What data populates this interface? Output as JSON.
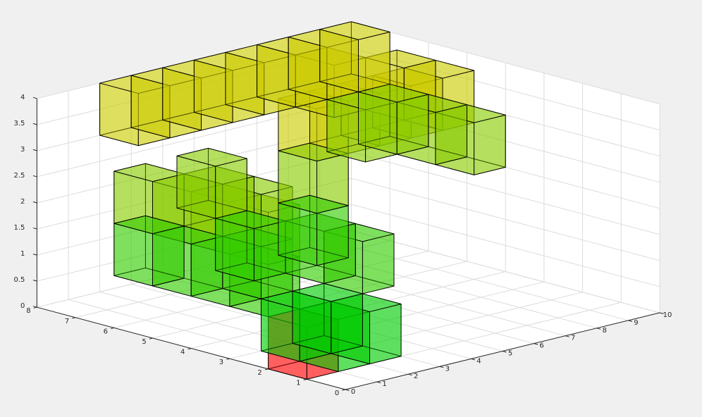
{
  "chart_data": {
    "type": "voxel-3d",
    "xlim": [
      0,
      10
    ],
    "ylim": [
      0,
      8
    ],
    "zlim": [
      0,
      4
    ],
    "x_ticks": [
      "0",
      "1",
      "2",
      "3",
      "4",
      "5",
      "6",
      "7",
      "8",
      "9",
      "10"
    ],
    "y_ticks": [
      "0",
      "1",
      "2",
      "3",
      "4",
      "5",
      "6",
      "7",
      "8"
    ],
    "z_ticks": [
      "0",
      "0.5",
      "1",
      "1.5",
      "2",
      "2.5",
      "3",
      "3.5",
      "4"
    ],
    "grid": true,
    "face_alpha": 0.7,
    "colors": {
      "start": "#ff0000",
      "level_0": "#00cc00",
      "level_1": "#33cc00",
      "level_2": "#88cc00",
      "level_3": "#cccc00"
    },
    "voxels": [
      {
        "x": 0,
        "y": 1,
        "z": 0,
        "kind": "start"
      },
      {
        "x": 1,
        "y": 1,
        "z": 0,
        "kind": "level_0"
      },
      {
        "x": 2,
        "y": 1,
        "z": 0,
        "kind": "level_0"
      },
      {
        "x": 1,
        "y": 2,
        "z": 0,
        "kind": "level_0"
      },
      {
        "x": 2,
        "y": 2,
        "z": 0,
        "kind": "level_0"
      },
      {
        "x": 0,
        "y": 2,
        "z": 1,
        "kind": "level_1"
      },
      {
        "x": 0,
        "y": 3,
        "z": 1,
        "kind": "level_1"
      },
      {
        "x": 0,
        "y": 4,
        "z": 1,
        "kind": "level_1"
      },
      {
        "x": 0,
        "y": 5,
        "z": 1,
        "kind": "level_1"
      },
      {
        "x": 1,
        "y": 3,
        "z": 1,
        "kind": "level_1"
      },
      {
        "x": 2,
        "y": 4,
        "z": 1,
        "kind": "level_1"
      },
      {
        "x": 3,
        "y": 3,
        "z": 1,
        "kind": "level_1"
      },
      {
        "x": 3,
        "y": 2,
        "z": 1,
        "kind": "level_1"
      },
      {
        "x": 4,
        "y": 4,
        "z": 1,
        "kind": "level_1"
      },
      {
        "x": 0,
        "y": 2,
        "z": 2,
        "kind": "level_2"
      },
      {
        "x": 0,
        "y": 3,
        "z": 2,
        "kind": "level_2"
      },
      {
        "x": 0,
        "y": 4,
        "z": 2,
        "kind": "level_2"
      },
      {
        "x": 0,
        "y": 5,
        "z": 2,
        "kind": "level_2"
      },
      {
        "x": 1,
        "y": 3,
        "z": 2,
        "kind": "level_2"
      },
      {
        "x": 1,
        "y": 4,
        "z": 2,
        "kind": "level_2"
      },
      {
        "x": 2,
        "y": 5,
        "z": 2,
        "kind": "level_2"
      },
      {
        "x": 4,
        "y": 4,
        "z": 2,
        "kind": "level_2"
      },
      {
        "x": 9,
        "y": 4,
        "z": 2,
        "kind": "level_2"
      },
      {
        "x": 9,
        "y": 5,
        "z": 2,
        "kind": "level_2"
      },
      {
        "x": 9,
        "y": 6,
        "z": 2,
        "kind": "level_2"
      },
      {
        "x": 8,
        "y": 6,
        "z": 2,
        "kind": "level_2"
      },
      {
        "x": 4,
        "y": 4,
        "z": 3,
        "kind": "level_3"
      },
      {
        "x": 5,
        "y": 4,
        "z": 3,
        "kind": "level_3"
      },
      {
        "x": 6,
        "y": 4,
        "z": 3,
        "kind": "level_3"
      },
      {
        "x": 7,
        "y": 4,
        "z": 3,
        "kind": "level_3"
      },
      {
        "x": 8,
        "y": 4,
        "z": 3,
        "kind": "level_3"
      },
      {
        "x": 8,
        "y": 5,
        "z": 3,
        "kind": "level_3"
      },
      {
        "x": 7,
        "y": 6,
        "z": 3,
        "kind": "level_3"
      },
      {
        "x": 5,
        "y": 7,
        "z": 3,
        "kind": "level_3"
      },
      {
        "x": 4,
        "y": 7,
        "z": 3,
        "kind": "level_3"
      },
      {
        "x": 6,
        "y": 7,
        "z": 3,
        "kind": "level_3"
      },
      {
        "x": 7,
        "y": 7,
        "z": 3,
        "kind": "level_3"
      },
      {
        "x": 8,
        "y": 7,
        "z": 3,
        "kind": "level_3"
      },
      {
        "x": 9,
        "y": 7,
        "z": 3,
        "kind": "level_3"
      },
      {
        "x": 3,
        "y": 7,
        "z": 3,
        "kind": "level_3"
      },
      {
        "x": 2,
        "y": 7,
        "z": 3,
        "kind": "level_3"
      }
    ]
  }
}
